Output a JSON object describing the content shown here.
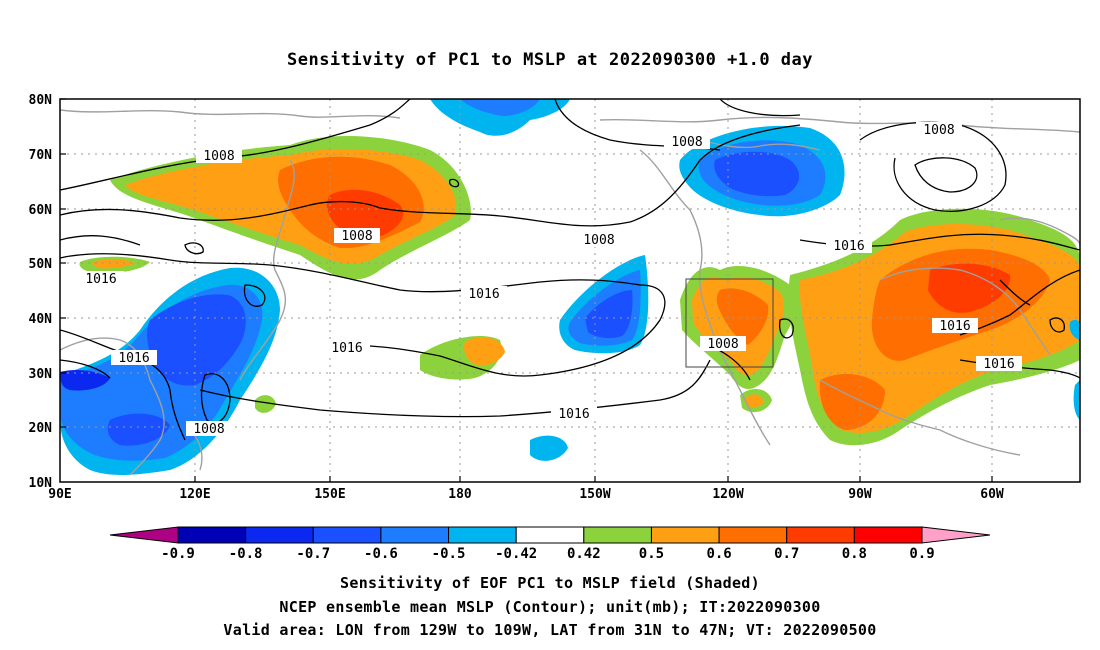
{
  "title": "Sensitivity of PC1 to MSLP at 2022090300 +1.0 day",
  "captions": [
    "Sensitivity of EOF PC1 to MSLP field (Shaded)",
    "NCEP ensemble mean MSLP (Contour); unit(mb); IT:2022090300",
    "Valid area: LON from 129W to 109W, LAT from 31N to 47N; VT: 2022090500"
  ],
  "lat_labels": [
    "80N",
    "70N",
    "60N",
    "50N",
    "40N",
    "30N",
    "20N",
    "10N"
  ],
  "lon_labels": [
    "90E",
    "120E",
    "150E",
    "180",
    "150W",
    "120W",
    "90W",
    "60W"
  ],
  "colorbar": {
    "labels": [
      "-0.9",
      "-0.8",
      "-0.7",
      "-0.6",
      "-0.5",
      "-0.42",
      "0.42",
      "0.5",
      "0.6",
      "0.7",
      "0.8",
      "0.9"
    ],
    "colors": [
      "#ad0082",
      "#0000b4",
      "#0a28f0",
      "#1a50ff",
      "#1e7cff",
      "#00b4f0",
      "#ffffff",
      "#8cd23c",
      "#ffa014",
      "#ff6e00",
      "#ff3c00",
      "#ff0000",
      "#ffa0c8"
    ]
  },
  "contour_labels": [
    "1008",
    "1008",
    "1008",
    "1008",
    "1008",
    "1008",
    "1008",
    "1016",
    "1016",
    "1016",
    "1016",
    "1016",
    "1016",
    "1016",
    "1016"
  ],
  "valid_box": {
    "lon_from": "129W",
    "lon_to": "109W",
    "lat_from": "31N",
    "lat_to": "47N"
  }
}
